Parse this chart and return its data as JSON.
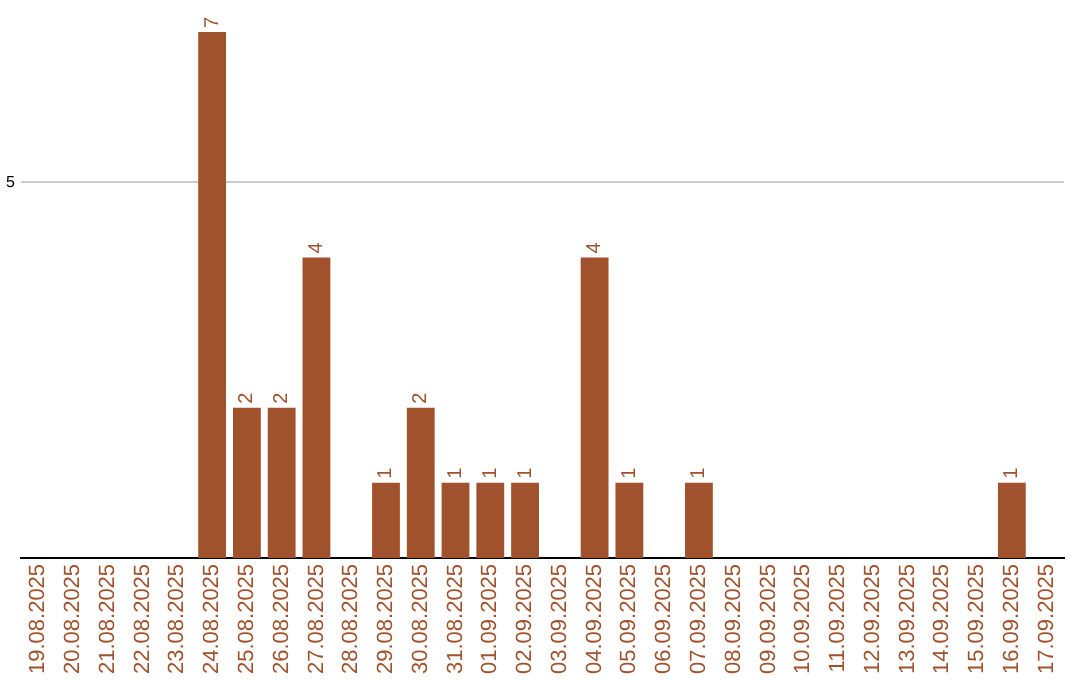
{
  "chart_data": {
    "type": "bar",
    "categories": [
      "19.08.2025",
      "20.08.2025",
      "21.08.2025",
      "22.08.2025",
      "23.08.2025",
      "24.08.2025",
      "25.08.2025",
      "26.08.2025",
      "27.08.2025",
      "28.08.2025",
      "29.08.2025",
      "30.08.2025",
      "31.08.2025",
      "01.09.2025",
      "02.09.2025",
      "03.09.2025",
      "04.09.2025",
      "05.09.2025",
      "06.09.2025",
      "07.09.2025",
      "08.09.2025",
      "09.09.2025",
      "10.09.2025",
      "11.09.2025",
      "12.09.2025",
      "13.09.2025",
      "14.09.2025",
      "15.09.2025",
      "16.09.2025",
      "17.09.2025"
    ],
    "values": [
      0,
      0,
      0,
      0,
      0,
      7,
      2,
      2,
      4,
      0,
      1,
      2,
      1,
      1,
      1,
      0,
      4,
      1,
      0,
      1,
      0,
      0,
      0,
      0,
      0,
      0,
      0,
      0,
      1,
      0
    ],
    "value_labels": [
      null,
      null,
      null,
      null,
      null,
      "7",
      "2",
      "2",
      "4",
      null,
      "1",
      "2",
      "1",
      "1",
      "1",
      null,
      "4",
      "1",
      null,
      "1",
      null,
      null,
      null,
      null,
      null,
      null,
      null,
      null,
      "1",
      null
    ],
    "color": "#a0522d",
    "ylim": [
      0,
      7
    ],
    "yticks": [
      5
    ],
    "grid": "y",
    "legend": false
  }
}
